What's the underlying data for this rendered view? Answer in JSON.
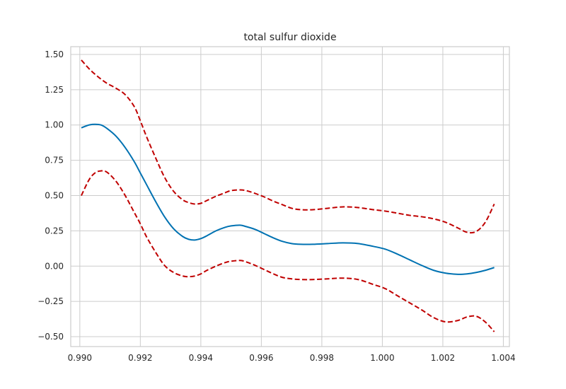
{
  "chart_data": {
    "type": "line",
    "title": "total sulfur dioxide",
    "xlabel": "",
    "ylabel": "",
    "xlim": [
      0.9897,
      1.0042
    ],
    "ylim": [
      -0.57,
      1.555
    ],
    "grid": true,
    "xticks": [
      0.99,
      0.992,
      0.994,
      0.996,
      0.998,
      1.0,
      1.002,
      1.004
    ],
    "xtick_labels": [
      "0.990",
      "0.992",
      "0.994",
      "0.996",
      "0.998",
      "1.000",
      "1.002",
      "1.004"
    ],
    "yticks": [
      -0.5,
      -0.25,
      0.0,
      0.25,
      0.5,
      0.75,
      1.0,
      1.25,
      1.5
    ],
    "ytick_labels": [
      "−0.50",
      "−0.25",
      "0.00",
      "0.25",
      "0.50",
      "0.75",
      "1.00",
      "1.25",
      "1.50"
    ],
    "series": [
      {
        "role": "estimate",
        "style": "solid",
        "color": "#0072b2",
        "x": [
          0.99005,
          0.9903,
          0.9905,
          0.9907,
          0.9909,
          0.9912,
          0.9915,
          0.9918,
          0.992,
          0.9922,
          0.9925,
          0.9928,
          0.9931,
          0.9934,
          0.9936,
          0.9938,
          0.994,
          0.9942,
          0.9945,
          0.9948,
          0.995,
          0.9953,
          0.9955,
          0.9958,
          0.9961,
          0.9964,
          0.9967,
          0.997,
          0.9973,
          0.9977,
          0.9982,
          0.9987,
          0.9992,
          0.9997,
          1.0001,
          1.0005,
          1.0009,
          1.0013,
          1.0017,
          1.0021,
          1.0025,
          1.0028,
          1.0031,
          1.0034,
          1.0037
        ],
        "y": [
          0.98,
          1.0,
          1.005,
          1.0,
          0.975,
          0.92,
          0.84,
          0.74,
          0.66,
          0.58,
          0.46,
          0.35,
          0.265,
          0.21,
          0.19,
          0.185,
          0.195,
          0.215,
          0.25,
          0.275,
          0.285,
          0.29,
          0.28,
          0.26,
          0.23,
          0.2,
          0.175,
          0.16,
          0.155,
          0.155,
          0.16,
          0.165,
          0.16,
          0.14,
          0.12,
          0.085,
          0.045,
          0.005,
          -0.03,
          -0.05,
          -0.058,
          -0.055,
          -0.045,
          -0.03,
          -0.01
        ]
      },
      {
        "role": "upper-bound",
        "style": "dashed",
        "color": "#c00000",
        "x": [
          0.99005,
          0.9903,
          0.9905,
          0.9907,
          0.9909,
          0.9912,
          0.9915,
          0.9918,
          0.992,
          0.9922,
          0.9925,
          0.9928,
          0.9931,
          0.9934,
          0.9936,
          0.9938,
          0.994,
          0.9942,
          0.9945,
          0.9948,
          0.995,
          0.9953,
          0.9955,
          0.9958,
          0.9961,
          0.9964,
          0.9967,
          0.997,
          0.9973,
          0.9977,
          0.9982,
          0.9987,
          0.9992,
          0.9997,
          1.0001,
          1.0005,
          1.0009,
          1.0013,
          1.0017,
          1.0021,
          1.0025,
          1.0028,
          1.0031,
          1.0034,
          1.0037
        ],
        "y": [
          1.46,
          1.4,
          1.36,
          1.325,
          1.295,
          1.26,
          1.215,
          1.13,
          1.03,
          0.92,
          0.77,
          0.63,
          0.53,
          0.47,
          0.45,
          0.44,
          0.445,
          0.465,
          0.495,
          0.52,
          0.535,
          0.54,
          0.535,
          0.515,
          0.49,
          0.46,
          0.435,
          0.41,
          0.4,
          0.4,
          0.41,
          0.42,
          0.415,
          0.4,
          0.39,
          0.375,
          0.36,
          0.35,
          0.335,
          0.31,
          0.27,
          0.24,
          0.245,
          0.31,
          0.44
        ]
      },
      {
        "role": "lower-bound",
        "style": "dashed",
        "color": "#c00000",
        "x": [
          0.99005,
          0.9903,
          0.9905,
          0.9907,
          0.9909,
          0.9912,
          0.9915,
          0.9918,
          0.992,
          0.9922,
          0.9925,
          0.9928,
          0.9931,
          0.9934,
          0.9936,
          0.9938,
          0.994,
          0.9942,
          0.9945,
          0.9948,
          0.995,
          0.9953,
          0.9955,
          0.9958,
          0.9961,
          0.9964,
          0.9967,
          0.997,
          0.9973,
          0.9977,
          0.9982,
          0.9987,
          0.9992,
          0.9997,
          1.0001,
          1.0005,
          1.0009,
          1.0013,
          1.0017,
          1.0021,
          1.0025,
          1.0028,
          1.0031,
          1.0034,
          1.0037
        ],
        "y": [
          0.5,
          0.61,
          0.66,
          0.675,
          0.665,
          0.6,
          0.5,
          0.38,
          0.3,
          0.21,
          0.1,
          0.005,
          -0.045,
          -0.07,
          -0.075,
          -0.07,
          -0.055,
          -0.03,
          0.0,
          0.025,
          0.035,
          0.04,
          0.03,
          0.005,
          -0.025,
          -0.055,
          -0.08,
          -0.09,
          -0.095,
          -0.095,
          -0.09,
          -0.085,
          -0.095,
          -0.13,
          -0.16,
          -0.21,
          -0.26,
          -0.31,
          -0.365,
          -0.395,
          -0.385,
          -0.36,
          -0.355,
          -0.395,
          -0.465
        ]
      }
    ]
  }
}
